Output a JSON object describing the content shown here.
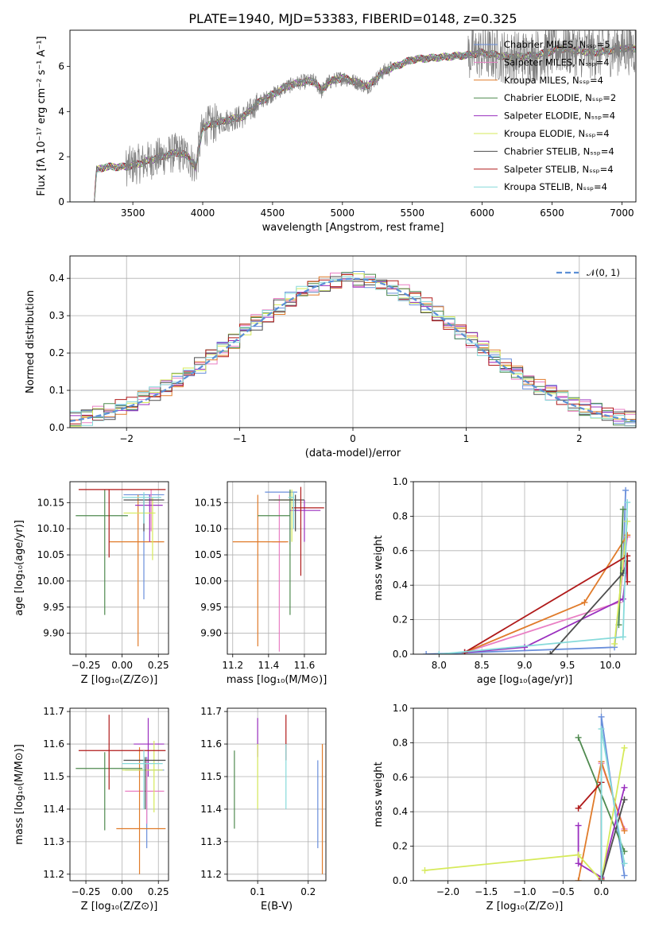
{
  "colors": {
    "chabrier_miles": "#6a8fdb",
    "salpeter_miles": "#e97fc4",
    "kroupa_miles": "#e07b2a",
    "chabrier_elodie": "#4f8a4f",
    "salpeter_elodie": "#9a2fbf",
    "kroupa_elodie": "#d6ea5a",
    "chabrier_stelib": "#4d4d4d",
    "salpeter_stelib": "#b01a1a",
    "kroupa_stelib": "#86dada",
    "data": "#808080",
    "gauss": "#5b8fd6"
  },
  "chart_data": [
    {
      "type": "line",
      "title": "PLATE=1940, MJD=53383, FIBERID=0148, z=0.325",
      "xlabel": "wavelength [Angstrom, rest frame]",
      "ylabel": "Flux [fλ 10⁻¹⁷ erg cm⁻² s⁻¹ A⁻¹]",
      "xlim": [
        3050,
        7100
      ],
      "ylim": [
        0,
        7.6
      ],
      "xticks": [
        3500,
        4000,
        4500,
        5000,
        5500,
        6000,
        6500,
        7000
      ],
      "yticks": [
        0,
        2,
        4,
        6
      ],
      "legend_position": "top-right",
      "series": [
        {
          "name": "Chabrier MILES, Nₛₛₚ=5",
          "color_key": "chabrier_miles"
        },
        {
          "name": "Salpeter MILES, Nₛₛₚ=4",
          "color_key": "salpeter_miles"
        },
        {
          "name": "Kroupa MILES, Nₛₛₚ=4",
          "color_key": "kroupa_miles"
        },
        {
          "name": "Chabrier ELODIE, Nₛₛₚ=2",
          "color_key": "chabrier_elodie"
        },
        {
          "name": "Salpeter ELODIE, Nₛₛₚ=4",
          "color_key": "salpeter_elodie"
        },
        {
          "name": "Kroupa ELODIE, Nₛₛₚ=4",
          "color_key": "kroupa_elodie"
        },
        {
          "name": "Chabrier STELIB, Nₛₛₚ=4",
          "color_key": "chabrier_stelib"
        },
        {
          "name": "Salpeter STELIB, Nₛₛₚ=4",
          "color_key": "salpeter_stelib"
        },
        {
          "name": "Kroupa STELIB, Nₛₛₚ=4",
          "color_key": "kroupa_stelib"
        }
      ],
      "continuum_knots": [
        [
          3050,
          0
        ],
        [
          3225,
          0
        ],
        [
          3240,
          1.4
        ],
        [
          3300,
          1.55
        ],
        [
          3450,
          1.55
        ],
        [
          3550,
          1.7
        ],
        [
          3700,
          2.0
        ],
        [
          3820,
          2.2
        ],
        [
          3900,
          2.0
        ],
        [
          3950,
          1.5
        ],
        [
          4000,
          3.3
        ],
        [
          4100,
          3.5
        ],
        [
          4200,
          3.65
        ],
        [
          4300,
          3.8
        ],
        [
          4400,
          4.4
        ],
        [
          4500,
          4.75
        ],
        [
          4600,
          5.1
        ],
        [
          4700,
          5.3
        ],
        [
          4800,
          5.35
        ],
        [
          4850,
          4.9
        ],
        [
          4900,
          5.3
        ],
        [
          5000,
          5.5
        ],
        [
          5100,
          5.3
        ],
        [
          5180,
          5.1
        ],
        [
          5300,
          5.8
        ],
        [
          5500,
          6.3
        ],
        [
          5700,
          6.4
        ],
        [
          5900,
          6.5
        ],
        [
          6000,
          6.6
        ],
        [
          6200,
          6.4
        ],
        [
          6400,
          6.5
        ],
        [
          6563,
          6.8
        ],
        [
          6800,
          6.6
        ],
        [
          7000,
          6.8
        ],
        [
          7100,
          6.8
        ]
      ]
    },
    {
      "type": "histogram",
      "xlabel": "(data-model)/error",
      "ylabel": "Normed distribution",
      "xlim": [
        -2.5,
        2.5
      ],
      "ylim": [
        0,
        0.46
      ],
      "xticks": [
        -2,
        -1,
        0,
        1,
        2
      ],
      "yticks": [
        0.0,
        0.1,
        0.2,
        0.3,
        0.4
      ],
      "legend": "𝒩(0, 1)",
      "legend_position": "top-right",
      "bin_width": 0.1,
      "reference_curve": "gaussian mean 0, sigma 1"
    },
    {
      "type": "scatter",
      "panel": "age vs Z",
      "xlabel": "Z [log₁₀(Z/Z⊙)]",
      "ylabel": "age  [log₁₀(age/yr)]",
      "xlim": [
        -0.36,
        0.32
      ],
      "ylim": [
        9.86,
        10.19
      ],
      "xticks": [
        -0.25,
        0.0,
        0.25
      ],
      "yticks": [
        9.9,
        9.95,
        10.0,
        10.05,
        10.1,
        10.15
      ],
      "points": [
        {
          "model": "chabrier_miles",
          "x": 0.15,
          "xerr": [
            0.14,
            0.14
          ],
          "y": 10.165,
          "yerr": [
            0.2,
            0.0
          ]
        },
        {
          "model": "salpeter_miles",
          "x": 0.2,
          "xerr": [
            0.08,
            0.05
          ],
          "y": 10.155,
          "yerr": [
            0.06,
            0.02
          ]
        },
        {
          "model": "kroupa_miles",
          "x": 0.11,
          "xerr": [
            0.2,
            0.18
          ],
          "y": 10.075,
          "yerr": [
            0.2,
            0.09
          ]
        },
        {
          "model": "chabrier_elodie",
          "x": -0.12,
          "xerr": [
            0.2,
            0.16
          ],
          "y": 10.125,
          "yerr": [
            0.19,
            0.05
          ]
        },
        {
          "model": "salpeter_elodie",
          "x": 0.19,
          "xerr": [
            0.1,
            0.09
          ],
          "y": 10.145,
          "yerr": [
            0.07,
            0.02
          ]
        },
        {
          "model": "kroupa_elodie",
          "x": 0.21,
          "xerr": [
            0.2,
            0.02
          ],
          "y": 10.13,
          "yerr": [
            0.09,
            0.03
          ]
        },
        {
          "model": "chabrier_stelib",
          "x": 0.15,
          "xerr": [
            0.14,
            0.14
          ],
          "y": 10.155,
          "yerr": [
            0.06,
            0.0
          ]
        },
        {
          "model": "salpeter_stelib",
          "x": -0.09,
          "xerr": [
            0.21,
            0.39
          ],
          "y": 10.175,
          "yerr": [
            0.13,
            0.0
          ]
        },
        {
          "model": "kroupa_stelib",
          "x": 0.15,
          "xerr": [
            0.15,
            0.12
          ],
          "y": 10.16,
          "yerr": [
            0.05,
            0.01
          ]
        }
      ]
    },
    {
      "type": "scatter",
      "panel": "age vs mass",
      "xlabel": "mass [log₁₀(M/M⊙)]",
      "ylabel": "",
      "xlim": [
        11.17,
        11.72
      ],
      "ylim": [
        9.86,
        10.19
      ],
      "xticks": [
        11.2,
        11.4,
        11.6
      ],
      "yticks": [
        9.9,
        9.95,
        10.0,
        10.05,
        10.1,
        10.15
      ],
      "points": [
        {
          "model": "chabrier_miles",
          "x": 11.52,
          "xerr": [
            0.14,
            0.04
          ],
          "y": 10.17,
          "yerr": [
            0.1,
            0.0
          ]
        },
        {
          "model": "salpeter_miles",
          "x": 11.46,
          "xerr": [
            0.04,
            0.04
          ],
          "y": 10.075,
          "yerr": [
            0.21,
            0.09
          ]
        },
        {
          "model": "kroupa_miles",
          "x": 11.34,
          "xerr": [
            0.14,
            0.17
          ],
          "y": 10.075,
          "yerr": [
            0.2,
            0.09
          ]
        },
        {
          "model": "chabrier_elodie",
          "x": 11.52,
          "xerr": [
            0.18,
            0.0
          ],
          "y": 10.125,
          "yerr": [
            0.19,
            0.05
          ]
        },
        {
          "model": "salpeter_elodie",
          "x": 11.6,
          "xerr": [
            0.08,
            0.09
          ],
          "y": 10.135,
          "yerr": [
            0.06,
            0.02
          ]
        },
        {
          "model": "kroupa_elodie",
          "x": 11.53,
          "xerr": [
            0.1,
            0.02
          ],
          "y": 10.155,
          "yerr": [
            0.08,
            0.02
          ]
        },
        {
          "model": "chabrier_stelib",
          "x": 11.55,
          "xerr": [
            0.15,
            0.05
          ],
          "y": 10.155,
          "yerr": [
            0.06,
            0.01
          ]
        },
        {
          "model": "salpeter_stelib",
          "x": 11.58,
          "xerr": [
            0.05,
            0.13
          ],
          "y": 10.14,
          "yerr": [
            0.13,
            0.04
          ]
        },
        {
          "model": "kroupa_stelib",
          "x": 11.54,
          "xerr": [
            0.03,
            0.0
          ],
          "y": 10.16,
          "yerr": [
            0.06,
            0.01
          ]
        }
      ]
    },
    {
      "type": "line",
      "panel": "mass weight vs age",
      "xlabel": "age  [log₁₀(age/yr)]",
      "ylabel": "mass weight",
      "xlim": [
        7.7,
        10.3
      ],
      "ylim": [
        0,
        1.0
      ],
      "xticks": [
        8.0,
        8.5,
        9.0,
        9.5,
        10.0
      ],
      "yticks": [
        0.0,
        0.2,
        0.4,
        0.6,
        0.8,
        1.0
      ],
      "series": [
        {
          "model": "chabrier_miles",
          "x": [
            7.85,
            10.05,
            10.15,
            10.18
          ],
          "y": [
            0.0,
            0.04,
            0.5,
            0.95
          ]
        },
        {
          "model": "salpeter_miles",
          "x": [
            8.3,
            10.1,
            10.2
          ],
          "y": [
            0.01,
            0.3,
            0.68
          ]
        },
        {
          "model": "kroupa_miles",
          "x": [
            8.3,
            9.7,
            10.2
          ],
          "y": [
            0.01,
            0.3,
            0.69
          ]
        },
        {
          "model": "chabrier_elodie",
          "x": [
            10.1,
            10.15
          ],
          "y": [
            0.17,
            0.84
          ]
        },
        {
          "model": "salpeter_elodie",
          "x": [
            8.3,
            9.0,
            10.15,
            10.2
          ],
          "y": [
            0.01,
            0.04,
            0.32,
            0.54
          ]
        },
        {
          "model": "kroupa_elodie",
          "x": [
            10.05,
            10.2
          ],
          "y": [
            0.06,
            0.77
          ]
        },
        {
          "model": "chabrier_stelib",
          "x": [
            9.3,
            10.15,
            10.2
          ],
          "y": [
            0.0,
            0.47,
            0.54
          ]
        },
        {
          "model": "salpeter_stelib",
          "x": [
            8.3,
            10.2,
            10.2
          ],
          "y": [
            0.01,
            0.57,
            0.42
          ]
        },
        {
          "model": "kroupa_stelib",
          "x": [
            8.0,
            10.15,
            10.2
          ],
          "y": [
            0.0,
            0.1,
            0.88
          ]
        }
      ]
    },
    {
      "type": "scatter",
      "panel": "mass vs Z",
      "xlabel": "Z [log₁₀(Z/Z⊙)]",
      "ylabel": "mass [log₁₀(M/M⊙)]",
      "xlim": [
        -0.36,
        0.32
      ],
      "ylim": [
        11.18,
        11.71
      ],
      "xticks": [
        -0.25,
        0.0,
        0.25
      ],
      "yticks": [
        11.2,
        11.3,
        11.4,
        11.5,
        11.6,
        11.7
      ],
      "points": [
        {
          "model": "chabrier_miles",
          "x": 0.17,
          "xerr": [
            0.15,
            0.12
          ],
          "y": 11.52,
          "yerr": [
            0.24,
            0.04
          ]
        },
        {
          "model": "salpeter_miles",
          "x": 0.17,
          "xerr": [
            0.15,
            0.12
          ],
          "y": 11.455,
          "yerr": [
            0.1,
            0.1
          ]
        },
        {
          "model": "kroupa_miles",
          "x": 0.12,
          "xerr": [
            0.16,
            0.18
          ],
          "y": 11.34,
          "yerr": [
            0.14,
            0.25
          ]
        },
        {
          "model": "chabrier_elodie",
          "x": -0.12,
          "xerr": [
            0.2,
            0.26
          ],
          "y": 11.525,
          "yerr": [
            0.19,
            0.05
          ]
        },
        {
          "model": "salpeter_elodie",
          "x": 0.18,
          "xerr": [
            0.1,
            0.11
          ],
          "y": 11.6,
          "yerr": [
            0.1,
            0.08
          ]
        },
        {
          "model": "kroupa_elodie",
          "x": 0.22,
          "xerr": [
            0.22,
            0.06
          ],
          "y": 11.52,
          "yerr": [
            0.13,
            0.09
          ]
        },
        {
          "model": "chabrier_stelib",
          "x": 0.16,
          "xerr": [
            0.15,
            0.14
          ],
          "y": 11.55,
          "yerr": [
            0.15,
            0.01
          ]
        },
        {
          "model": "salpeter_stelib",
          "x": -0.09,
          "xerr": [
            0.21,
            0.39
          ],
          "y": 11.58,
          "yerr": [
            0.12,
            0.11
          ]
        },
        {
          "model": "kroupa_stelib",
          "x": 0.15,
          "xerr": [
            0.15,
            0.13
          ],
          "y": 11.54,
          "yerr": [
            0.14,
            0.04
          ]
        }
      ]
    },
    {
      "type": "scatter",
      "panel": "mass vs E(B-V)",
      "xlabel": "E(B-V)",
      "ylabel": "",
      "xlim": [
        0.04,
        0.235
      ],
      "ylim": [
        11.18,
        11.71
      ],
      "xticks": [
        0.1,
        0.2
      ],
      "yticks": [
        11.2,
        11.3,
        11.4,
        11.5,
        11.6,
        11.7
      ],
      "points": [
        {
          "model": "chabrier_miles",
          "x": 0.219,
          "y": 11.42,
          "yerr": [
            0.14,
            0.13
          ]
        },
        {
          "model": "salpeter_miles",
          "x": 0.228,
          "y": 11.46,
          "yerr": [
            0.0,
            0.0
          ]
        },
        {
          "model": "kroupa_miles",
          "x": 0.228,
          "y": 11.34,
          "yerr": [
            0.14,
            0.26
          ]
        },
        {
          "model": "chabrier_elodie",
          "x": 0.054,
          "y": 11.46,
          "yerr": [
            0.12,
            0.12
          ]
        },
        {
          "model": "salpeter_elodie",
          "x": 0.1,
          "y": 11.62,
          "yerr": [
            0.06,
            0.06
          ]
        },
        {
          "model": "kroupa_elodie",
          "x": 0.1,
          "y": 11.5,
          "yerr": [
            0.1,
            0.1
          ]
        },
        {
          "model": "chabrier_stelib",
          "x": 0.156,
          "y": 11.55,
          "yerr": [
            0.0,
            0.0
          ]
        },
        {
          "model": "salpeter_stelib",
          "x": 0.156,
          "y": 11.62,
          "yerr": [
            0.07,
            0.07
          ]
        },
        {
          "model": "kroupa_stelib",
          "x": 0.156,
          "y": 11.5,
          "yerr": [
            0.1,
            0.1
          ]
        }
      ]
    },
    {
      "type": "line",
      "panel": "mass weight vs Z",
      "xlabel": "Z [log₁₀(Z/Z⊙)]",
      "ylabel": "mass weight",
      "xlim": [
        -2.45,
        0.45
      ],
      "ylim": [
        0,
        1.0
      ],
      "xticks": [
        -2.0,
        -1.5,
        -1.0,
        -0.5,
        0.0
      ],
      "yticks": [
        0.0,
        0.2,
        0.4,
        0.6,
        0.8,
        1.0
      ],
      "series": [
        {
          "model": "chabrier_miles",
          "x": [
            0.0,
            0.0,
            0.3
          ],
          "y": [
            0.02,
            0.95,
            0.03
          ]
        },
        {
          "model": "salpeter_miles",
          "x": [
            0.0,
            0.3
          ],
          "y": [
            0.68,
            0.3
          ]
        },
        {
          "model": "kroupa_miles",
          "x": [
            -0.3,
            0.0,
            0.3
          ],
          "y": [
            0.0,
            0.69,
            0.29
          ]
        },
        {
          "model": "chabrier_elodie",
          "x": [
            -0.3,
            0.3
          ],
          "y": [
            0.83,
            0.17
          ]
        },
        {
          "model": "salpeter_elodie",
          "x": [
            -0.3,
            -0.3,
            0.0,
            0.3
          ],
          "y": [
            0.32,
            0.1,
            0.02,
            0.54
          ]
        },
        {
          "model": "kroupa_elodie",
          "x": [
            -2.3,
            -0.3,
            0.0,
            0.3
          ],
          "y": [
            0.06,
            0.15,
            0.0,
            0.77
          ]
        },
        {
          "model": "chabrier_stelib",
          "x": [
            0.0,
            0.3
          ],
          "y": [
            0.0,
            0.47
          ]
        },
        {
          "model": "salpeter_stelib",
          "x": [
            -0.3,
            0.0,
            0.0
          ],
          "y": [
            0.42,
            0.57,
            0.01
          ]
        },
        {
          "model": "kroupa_stelib",
          "x": [
            0.0,
            0.0,
            0.3
          ],
          "y": [
            0.0,
            0.88,
            0.1
          ]
        }
      ]
    }
  ]
}
